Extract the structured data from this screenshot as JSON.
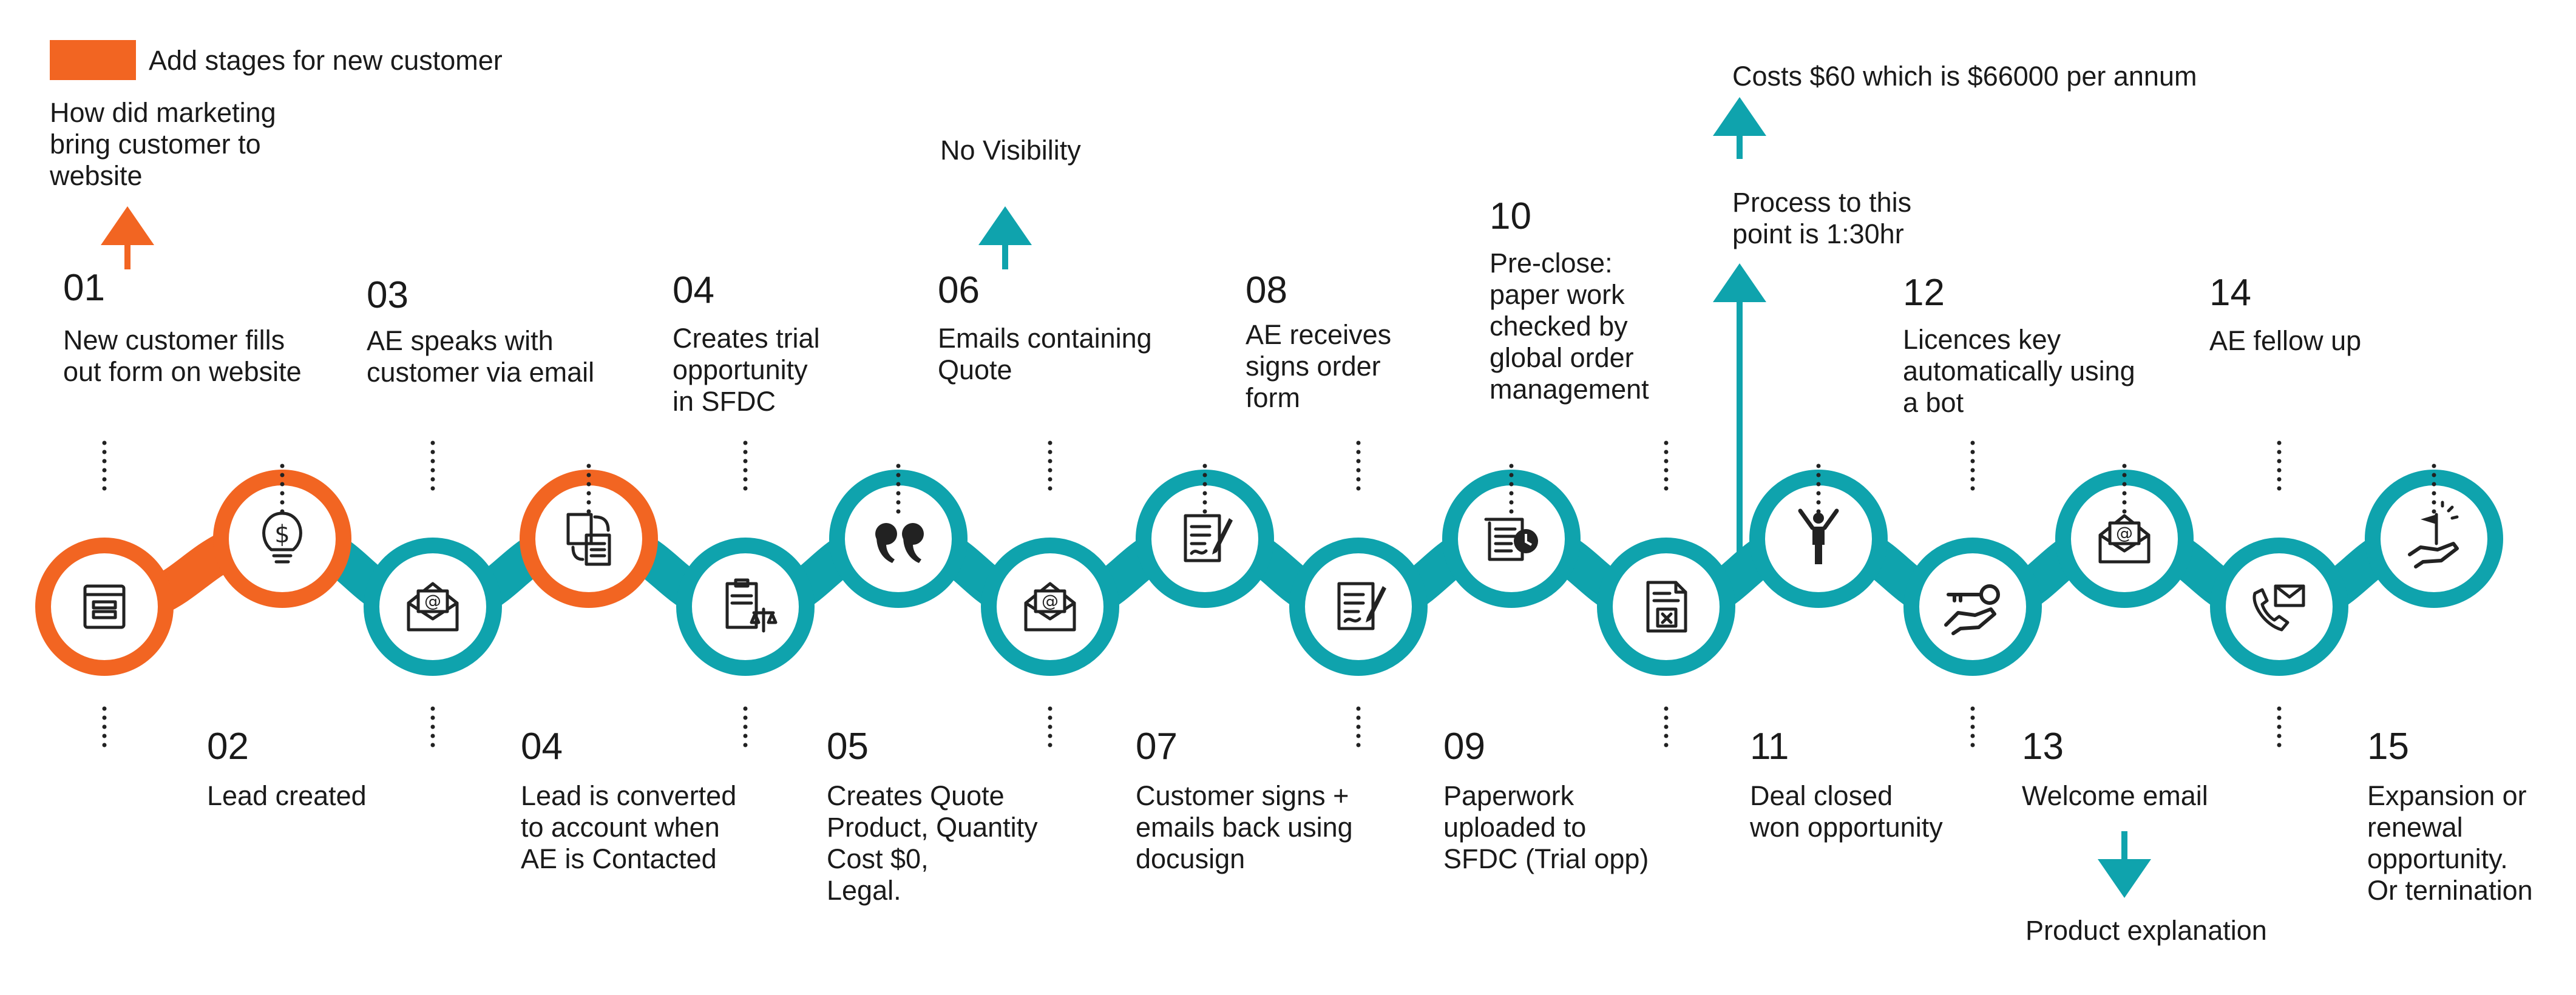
{
  "legend": {
    "label": "Add stages for new customer",
    "color": "#F26522"
  },
  "colors": {
    "teal": "#0FA3AD",
    "orange": "#F26522",
    "icon": "#222222"
  },
  "annotations": {
    "marketing": "How did marketing\nbring customer to\nwebsite",
    "no_visibility": "No Visibility",
    "costs": "Costs $60 which is $66000 per annum",
    "process_time": "Process to this\npoint is 1:30hr",
    "product_explanation": "Product explanation"
  },
  "stages": [
    {
      "number": "01",
      "text": "New customer fills\nout form on website",
      "icon": "web-form-icon",
      "highlight": true
    },
    {
      "number": "02",
      "text": "Lead created",
      "icon": "lightbulb-dollar-icon",
      "highlight": true
    },
    {
      "number": "03",
      "text": "AE speaks with\ncustomer via email",
      "icon": "email-icon",
      "highlight": false
    },
    {
      "number": "04",
      "text": "Lead is converted\nto account when\nAE is Contacted",
      "icon": "document-exchange-icon",
      "highlight": true
    },
    {
      "number": "04",
      "text": "Creates trial\nopportunity\nin SFDC",
      "icon": "clipboard-scales-icon",
      "highlight": false
    },
    {
      "number": "05",
      "text": "Creates Quote\nProduct, Quantity\nCost $0,\nLegal.",
      "icon": "quote-icon",
      "highlight": false
    },
    {
      "number": "06",
      "text": "Emails containing\nQuote",
      "icon": "email-icon",
      "highlight": false
    },
    {
      "number": "07",
      "text": "Customer signs +\nemails back using\ndocusign",
      "icon": "sign-document-icon",
      "highlight": false
    },
    {
      "number": "08",
      "text": "AE receives\nsigns order\nform",
      "icon": "sign-document-icon",
      "highlight": false
    },
    {
      "number": "09",
      "text": "Paperwork\nuploaded to\nSFDC (Trial opp)",
      "icon": "scroll-clock-icon",
      "highlight": false
    },
    {
      "number": "10",
      "text": "Pre-close:\npaper work\nchecked by\nglobal order\nmanagement",
      "icon": "file-upload-icon",
      "highlight": false
    },
    {
      "number": "11",
      "text": "Deal closed\nwon opportunity",
      "icon": "celebrating-person-icon",
      "highlight": false
    },
    {
      "number": "12",
      "text": "Licences key\nautomatically using\na bot",
      "icon": "hand-key-icon",
      "highlight": false
    },
    {
      "number": "13",
      "text": "Welcome email",
      "icon": "email-icon",
      "highlight": false
    },
    {
      "number": "14",
      "text": "AE fellow up",
      "icon": "phone-email-icon",
      "highlight": false
    },
    {
      "number": "15",
      "text": "Expansion or\nrenewal\nopportunity.\nOr ternination",
      "icon": "hand-flag-icon",
      "highlight": false
    }
  ]
}
